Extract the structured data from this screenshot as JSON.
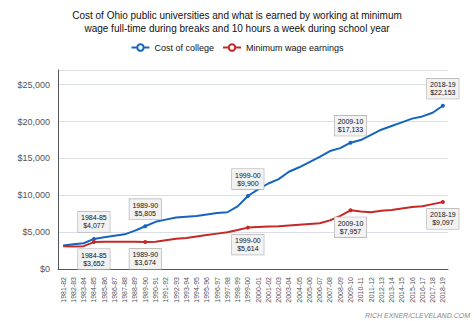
{
  "chart_data": {
    "type": "line",
    "title": "Cost of Ohio public universities and what is earned by working at minimum\nwage full-time during breaks and 10 hours a week during school year",
    "source": "RICH EXNER/CLEVELAND.COM",
    "categories": [
      "1981-82",
      "1982-83",
      "1983-84",
      "1984-85",
      "1985-86",
      "1986-87",
      "1987-88",
      "1988-89",
      "1989-90",
      "1990-91",
      "1991-92",
      "1992-93",
      "1993-94",
      "1994-95",
      "1995-96",
      "1996-97",
      "1997-98",
      "1998-99",
      "1999-00",
      "2000-01",
      "2001-02",
      "2002-03",
      "2003-04",
      "2004-05",
      "2005-06",
      "2006-07",
      "2007-08",
      "2008-09",
      "2009-10",
      "2010-11",
      "2011-12",
      "2012-13",
      "2013-14",
      "2014-15",
      "2015-16",
      "2016-17",
      "2017-18",
      "2018-19"
    ],
    "series": [
      {
        "name": "Cost of college",
        "color": "#1565c0",
        "values": [
          3200,
          3350,
          3500,
          4077,
          4300,
          4500,
          4700,
          5200,
          5805,
          6400,
          6700,
          7000,
          7100,
          7200,
          7400,
          7600,
          7700,
          8500,
          9900,
          10800,
          11600,
          12200,
          13200,
          13800,
          14500,
          15200,
          16000,
          16400,
          17133,
          17500,
          18200,
          18900,
          19400,
          19900,
          20400,
          20700,
          21200,
          22153
        ]
      },
      {
        "name": "Minimum wage earnings",
        "color": "#c62828",
        "values": [
          3100,
          3050,
          3100,
          3652,
          3700,
          3700,
          3700,
          3700,
          3674,
          3700,
          3900,
          4100,
          4200,
          4400,
          4600,
          4800,
          5000,
          5300,
          5614,
          5700,
          5750,
          5800,
          5900,
          6000,
          6100,
          6200,
          6600,
          7200,
          7957,
          7800,
          7700,
          7900,
          8000,
          8200,
          8400,
          8500,
          8800,
          9097
        ]
      }
    ],
    "ylim": [
      0,
      27000
    ],
    "yticks": [
      {
        "value": 0,
        "label": "$0"
      },
      {
        "value": 5000,
        "label": "$5,000"
      },
      {
        "value": 10000,
        "label": "$10,000"
      },
      {
        "value": 15000,
        "label": "$15,000"
      },
      {
        "value": 20000,
        "label": "$20,000"
      },
      {
        "value": 25000,
        "label": "$25,000"
      }
    ],
    "grid": true,
    "legend": "top",
    "annotations": [
      {
        "text": "1984-85\n$4,077",
        "x": "1984-85",
        "y": 4077,
        "series": "Cost of college"
      },
      {
        "text": "1989-90\n$5,805",
        "x": "1989-90",
        "y": 5805,
        "series": "Cost of college"
      },
      {
        "text": "1999-00\n$9,900",
        "x": "1999-00",
        "y": 9900,
        "series": "Cost of college"
      },
      {
        "text": "2009-10\n$17,133",
        "x": "2009-10",
        "y": 17133,
        "series": "Cost of college"
      },
      {
        "text": "2018-19\n$22,153",
        "x": "2018-19",
        "y": 22153,
        "series": "Cost of college"
      },
      {
        "text": "1984-85\n$3,652",
        "x": "1984-85",
        "y": 3652,
        "series": "Minimum wage earnings"
      },
      {
        "text": "1989-90\n$3,674",
        "x": "1989-90",
        "y": 3674,
        "series": "Minimum wage earnings"
      },
      {
        "text": "1999-00\n$5,614",
        "x": "1999-00",
        "y": 5614,
        "series": "Minimum wage earnings"
      },
      {
        "text": "2009-10\n$7,957",
        "x": "2009-10",
        "y": 7957,
        "series": "Minimum wage earnings"
      },
      {
        "text": "2018-19\n$9,097",
        "x": "2018-19",
        "y": 9097,
        "series": "Minimum wage earnings"
      }
    ]
  }
}
